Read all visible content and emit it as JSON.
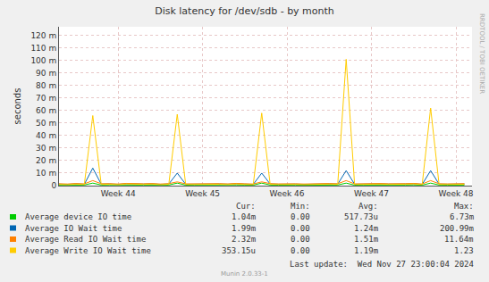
{
  "chart_data": {
    "type": "line",
    "title": "Disk latency for /dev/sdb - by month",
    "y_label": "seconds",
    "x": [
      43.3,
      43.4,
      43.5,
      43.6,
      43.7,
      43.8,
      43.9,
      44.0,
      44.1,
      44.2,
      44.3,
      44.4,
      44.5,
      44.6,
      44.7,
      44.8,
      44.9,
      45.0,
      45.1,
      45.2,
      45.3,
      45.4,
      45.5,
      45.6,
      45.7,
      45.8,
      45.9,
      46.0,
      46.1,
      46.2,
      46.3,
      46.4,
      46.5,
      46.6,
      46.7,
      46.8,
      46.9,
      47.0,
      47.1,
      47.2,
      47.3,
      47.4,
      47.5,
      47.6,
      47.7,
      47.8,
      47.9,
      48.0,
      48.1
    ],
    "xlim": [
      43.3,
      48.19
    ],
    "xticks": [
      {
        "value": 44,
        "label": "Week 44"
      },
      {
        "value": 45,
        "label": "Week 45"
      },
      {
        "value": 46,
        "label": "Week 46"
      },
      {
        "value": 47,
        "label": "Week 47"
      },
      {
        "value": 48,
        "label": "Week 48"
      }
    ],
    "ylim": [
      0,
      0.127
    ],
    "yticks": [
      0,
      {
        "value": 0.01,
        "label": "10 m"
      },
      {
        "value": 0.02,
        "label": "20 m"
      },
      {
        "value": 0.03,
        "label": "30 m"
      },
      {
        "value": 0.04,
        "label": "40 m"
      },
      {
        "value": 0.05,
        "label": "50 m"
      },
      {
        "value": 0.06,
        "label": "60 m"
      },
      {
        "value": 0.07,
        "label": "70 m"
      },
      {
        "value": 0.08,
        "label": "80 m"
      },
      {
        "value": 0.09,
        "label": "90 m"
      },
      {
        "value": 0.1,
        "label": "100 m"
      },
      {
        "value": 0.11,
        "label": "110 m"
      },
      {
        "value": 0.12,
        "label": "120 m"
      }
    ],
    "grid": true,
    "stats_header": [
      "Cur:",
      "Min:",
      "Avg:",
      "Max:"
    ],
    "series": [
      {
        "name": "Average device IO time",
        "color": "#00cc00",
        "stats": [
          "1.04m",
          "0.00",
          "517.73u",
          "6.73m"
        ],
        "values": [
          0.0005,
          0.0004,
          0.0006,
          0.0005,
          0.002,
          0.0005,
          0.0006,
          0.0004,
          0.0006,
          0.0005,
          0.0005,
          0.0006,
          0.0004,
          0.0005,
          0.002,
          0.0004,
          0.0005,
          0.0006,
          0.0004,
          0.0005,
          0.0004,
          0.0006,
          0.0005,
          0.0004,
          0.002,
          0.0005,
          0.0004,
          0.0006,
          0.0005,
          0.0004,
          0.0005,
          0.0004,
          0.0006,
          0.0005,
          0.002,
          0.0004,
          0.0005,
          0.0004,
          0.0006,
          0.0005,
          0.0004,
          0.0005,
          0.0006,
          0.0004,
          0.002,
          0.0005,
          0.0004,
          0.0006,
          0.0005
        ]
      },
      {
        "name": "Average IO Wait time",
        "color": "#0066b3",
        "stats": [
          "1.99m",
          "0.00",
          "1.24m",
          "200.99m"
        ],
        "values": [
          0.0012,
          0.001,
          0.0014,
          0.0011,
          0.014,
          0.0012,
          0.0013,
          0.001,
          0.0015,
          0.0011,
          0.0012,
          0.0014,
          0.001,
          0.0013,
          0.01,
          0.0011,
          0.0012,
          0.0014,
          0.001,
          0.0013,
          0.0011,
          0.0015,
          0.0012,
          0.001,
          0.01,
          0.0013,
          0.0011,
          0.0014,
          0.0012,
          0.001,
          0.0013,
          0.0011,
          0.0014,
          0.0012,
          0.012,
          0.0011,
          0.0013,
          0.001,
          0.0014,
          0.0012,
          0.0011,
          0.0013,
          0.0015,
          0.001,
          0.012,
          0.0012,
          0.0011,
          0.0014,
          0.0013
        ]
      },
      {
        "name": "Average Read IO Wait time",
        "color": "#ff8000",
        "stats": [
          "2.32m",
          "0.00",
          "1.51m",
          "11.64m"
        ],
        "values": [
          0.0015,
          0.0013,
          0.0017,
          0.0014,
          0.004,
          0.0015,
          0.0016,
          0.0013,
          0.0018,
          0.0014,
          0.0015,
          0.0017,
          0.0013,
          0.0016,
          0.003,
          0.0014,
          0.0015,
          0.0017,
          0.0013,
          0.0016,
          0.0014,
          0.0018,
          0.0015,
          0.0013,
          0.003,
          0.0016,
          0.0014,
          0.0017,
          0.0015,
          0.0013,
          0.0016,
          0.0014,
          0.0017,
          0.0015,
          0.004,
          0.0014,
          0.0016,
          0.0013,
          0.0017,
          0.0015,
          0.0014,
          0.0016,
          0.0018,
          0.0013,
          0.004,
          0.0015,
          0.0014,
          0.0017,
          0.0016
        ]
      },
      {
        "name": "Average Write IO Wait time",
        "color": "#ffcc00",
        "stats": [
          "353.15u",
          "0.00",
          "1.19m",
          "1.23"
        ],
        "values": [
          0.001,
          0.0008,
          0.0012,
          0.0009,
          0.056,
          0.001,
          0.0011,
          0.0008,
          0.0013,
          0.0009,
          0.001,
          0.0012,
          0.0008,
          0.0011,
          0.057,
          0.0009,
          0.001,
          0.0012,
          0.0008,
          0.0011,
          0.0009,
          0.0013,
          0.001,
          0.0008,
          0.058,
          0.0011,
          0.0009,
          0.0012,
          0.001,
          0.0008,
          0.0011,
          0.0009,
          0.0012,
          0.001,
          0.101,
          0.0009,
          0.0011,
          0.0008,
          0.0012,
          0.001,
          0.0009,
          0.0011,
          0.0013,
          0.0008,
          0.062,
          0.001,
          0.0009,
          0.0012,
          0.0011
        ]
      }
    ],
    "annotations": [
      "Last update:  Wed Nov 27 23:00:04 2024",
      "Munin 2.0.33-1",
      "RRDTOOL / TOBI OETIKER"
    ]
  }
}
